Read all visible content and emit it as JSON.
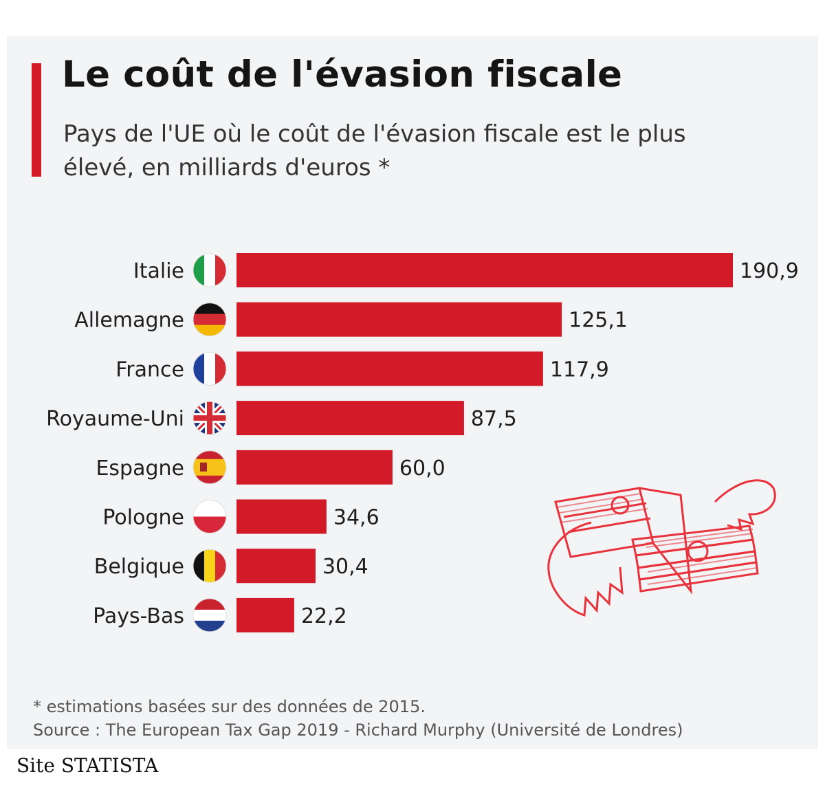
{
  "header": {
    "title": "Le coût de l'évasion fiscale",
    "subtitle": "Pays de l'UE où le coût de l'évasion fiscale est le plus élevé, en milliards d'euros *"
  },
  "chart_data": {
    "type": "bar",
    "orientation": "horizontal",
    "title": "Le coût de l'évasion fiscale",
    "subtitle": "Pays de l'UE où le coût de l'évasion fiscale est le plus élevé, en milliards d'euros *",
    "categories": [
      "Italie",
      "Allemagne",
      "France",
      "Royaume-Uni",
      "Espagne",
      "Pologne",
      "Belgique",
      "Pays-Bas"
    ],
    "values": [
      190.9,
      125.1,
      117.9,
      87.5,
      60.0,
      34.6,
      30.4,
      22.2
    ],
    "value_labels": [
      "190,9",
      "125,1",
      "117,9",
      "87,5",
      "60,0",
      "34,6",
      "30,4",
      "22,2"
    ],
    "flags": [
      "italy-flag-icon",
      "germany-flag-icon",
      "france-flag-icon",
      "uk-flag-icon",
      "spain-flag-icon",
      "poland-flag-icon",
      "belgium-flag-icon",
      "netherlands-flag-icon"
    ],
    "xlabel": "",
    "ylabel": "",
    "xlim": [
      0,
      190.9
    ],
    "grid": false,
    "bar_color": "#d21a28"
  },
  "footer": {
    "note": "* estimations basées sur des données de 2015.",
    "source": "Source : The European Tax Gap 2019 - Richard Murphy (Université de Londres)",
    "site": "Site STATISTA"
  },
  "decoration": {
    "icon": "flying-money-icon",
    "color": "#e8323c"
  }
}
